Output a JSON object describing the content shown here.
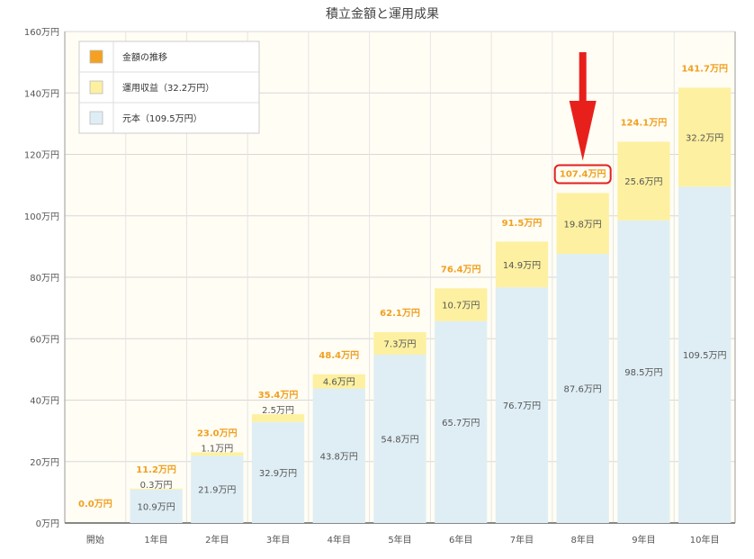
{
  "chart_data": {
    "type": "bar",
    "stacked": true,
    "title": "積立金額と運用成果",
    "categories": [
      "開始",
      "1年目",
      "2年目",
      "3年目",
      "4年目",
      "5年目",
      "6年目",
      "7年目",
      "8年目",
      "9年目",
      "10年目"
    ],
    "series": [
      {
        "name": "元本（109.5万円）",
        "color": "#dfeef5",
        "values": [
          0,
          10.9,
          21.9,
          32.9,
          43.8,
          54.8,
          65.7,
          76.7,
          87.6,
          98.5,
          109.5
        ],
        "labels": [
          "",
          "10.9万円",
          "21.9万円",
          "32.9万円",
          "43.8万円",
          "54.8万円",
          "65.7万円",
          "76.7万円",
          "87.6万円",
          "98.5万円",
          "109.5万円"
        ]
      },
      {
        "name": "運用収益（32.2万円）",
        "color": "#fdf0a0",
        "values": [
          0,
          0.3,
          1.1,
          2.5,
          4.6,
          7.3,
          10.7,
          14.9,
          19.8,
          25.6,
          32.2
        ],
        "labels": [
          "",
          "0.3万円",
          "1.1万円",
          "2.5万円",
          "4.6万円",
          "7.3万円",
          "10.7万円",
          "14.9万円",
          "19.8万円",
          "25.6万円",
          "32.2万円"
        ]
      }
    ],
    "totals": [
      0,
      11.2,
      23.0,
      35.4,
      48.4,
      62.1,
      76.4,
      91.5,
      107.4,
      124.1,
      141.7
    ],
    "total_labels": [
      "0.0万円",
      "11.2万円",
      "23.0万円",
      "35.4万円",
      "48.4万円",
      "62.1万円",
      "76.4万円",
      "91.5万円",
      "107.4万円",
      "124.1万円",
      "141.7万円"
    ],
    "legend": {
      "placement": "top-left",
      "items": [
        {
          "name": "金額の推移",
          "color": "#f4a020"
        },
        {
          "name": "運用収益（32.2万円）",
          "color": "#fdf0a0"
        },
        {
          "name": "元本（109.5万円）",
          "color": "#dfeef5"
        }
      ]
    },
    "ylim": [
      0,
      160
    ],
    "yticks": [
      0,
      20,
      40,
      60,
      80,
      100,
      120,
      140,
      160
    ],
    "ytick_labels": [
      "0万円",
      "20万円",
      "40万円",
      "60万円",
      "80万円",
      "100万円",
      "120万円",
      "140万円",
      "160万円"
    ],
    "grid": true,
    "highlight": {
      "category": "8年目",
      "label": "107.4万円",
      "marker": "red-arrow"
    }
  }
}
